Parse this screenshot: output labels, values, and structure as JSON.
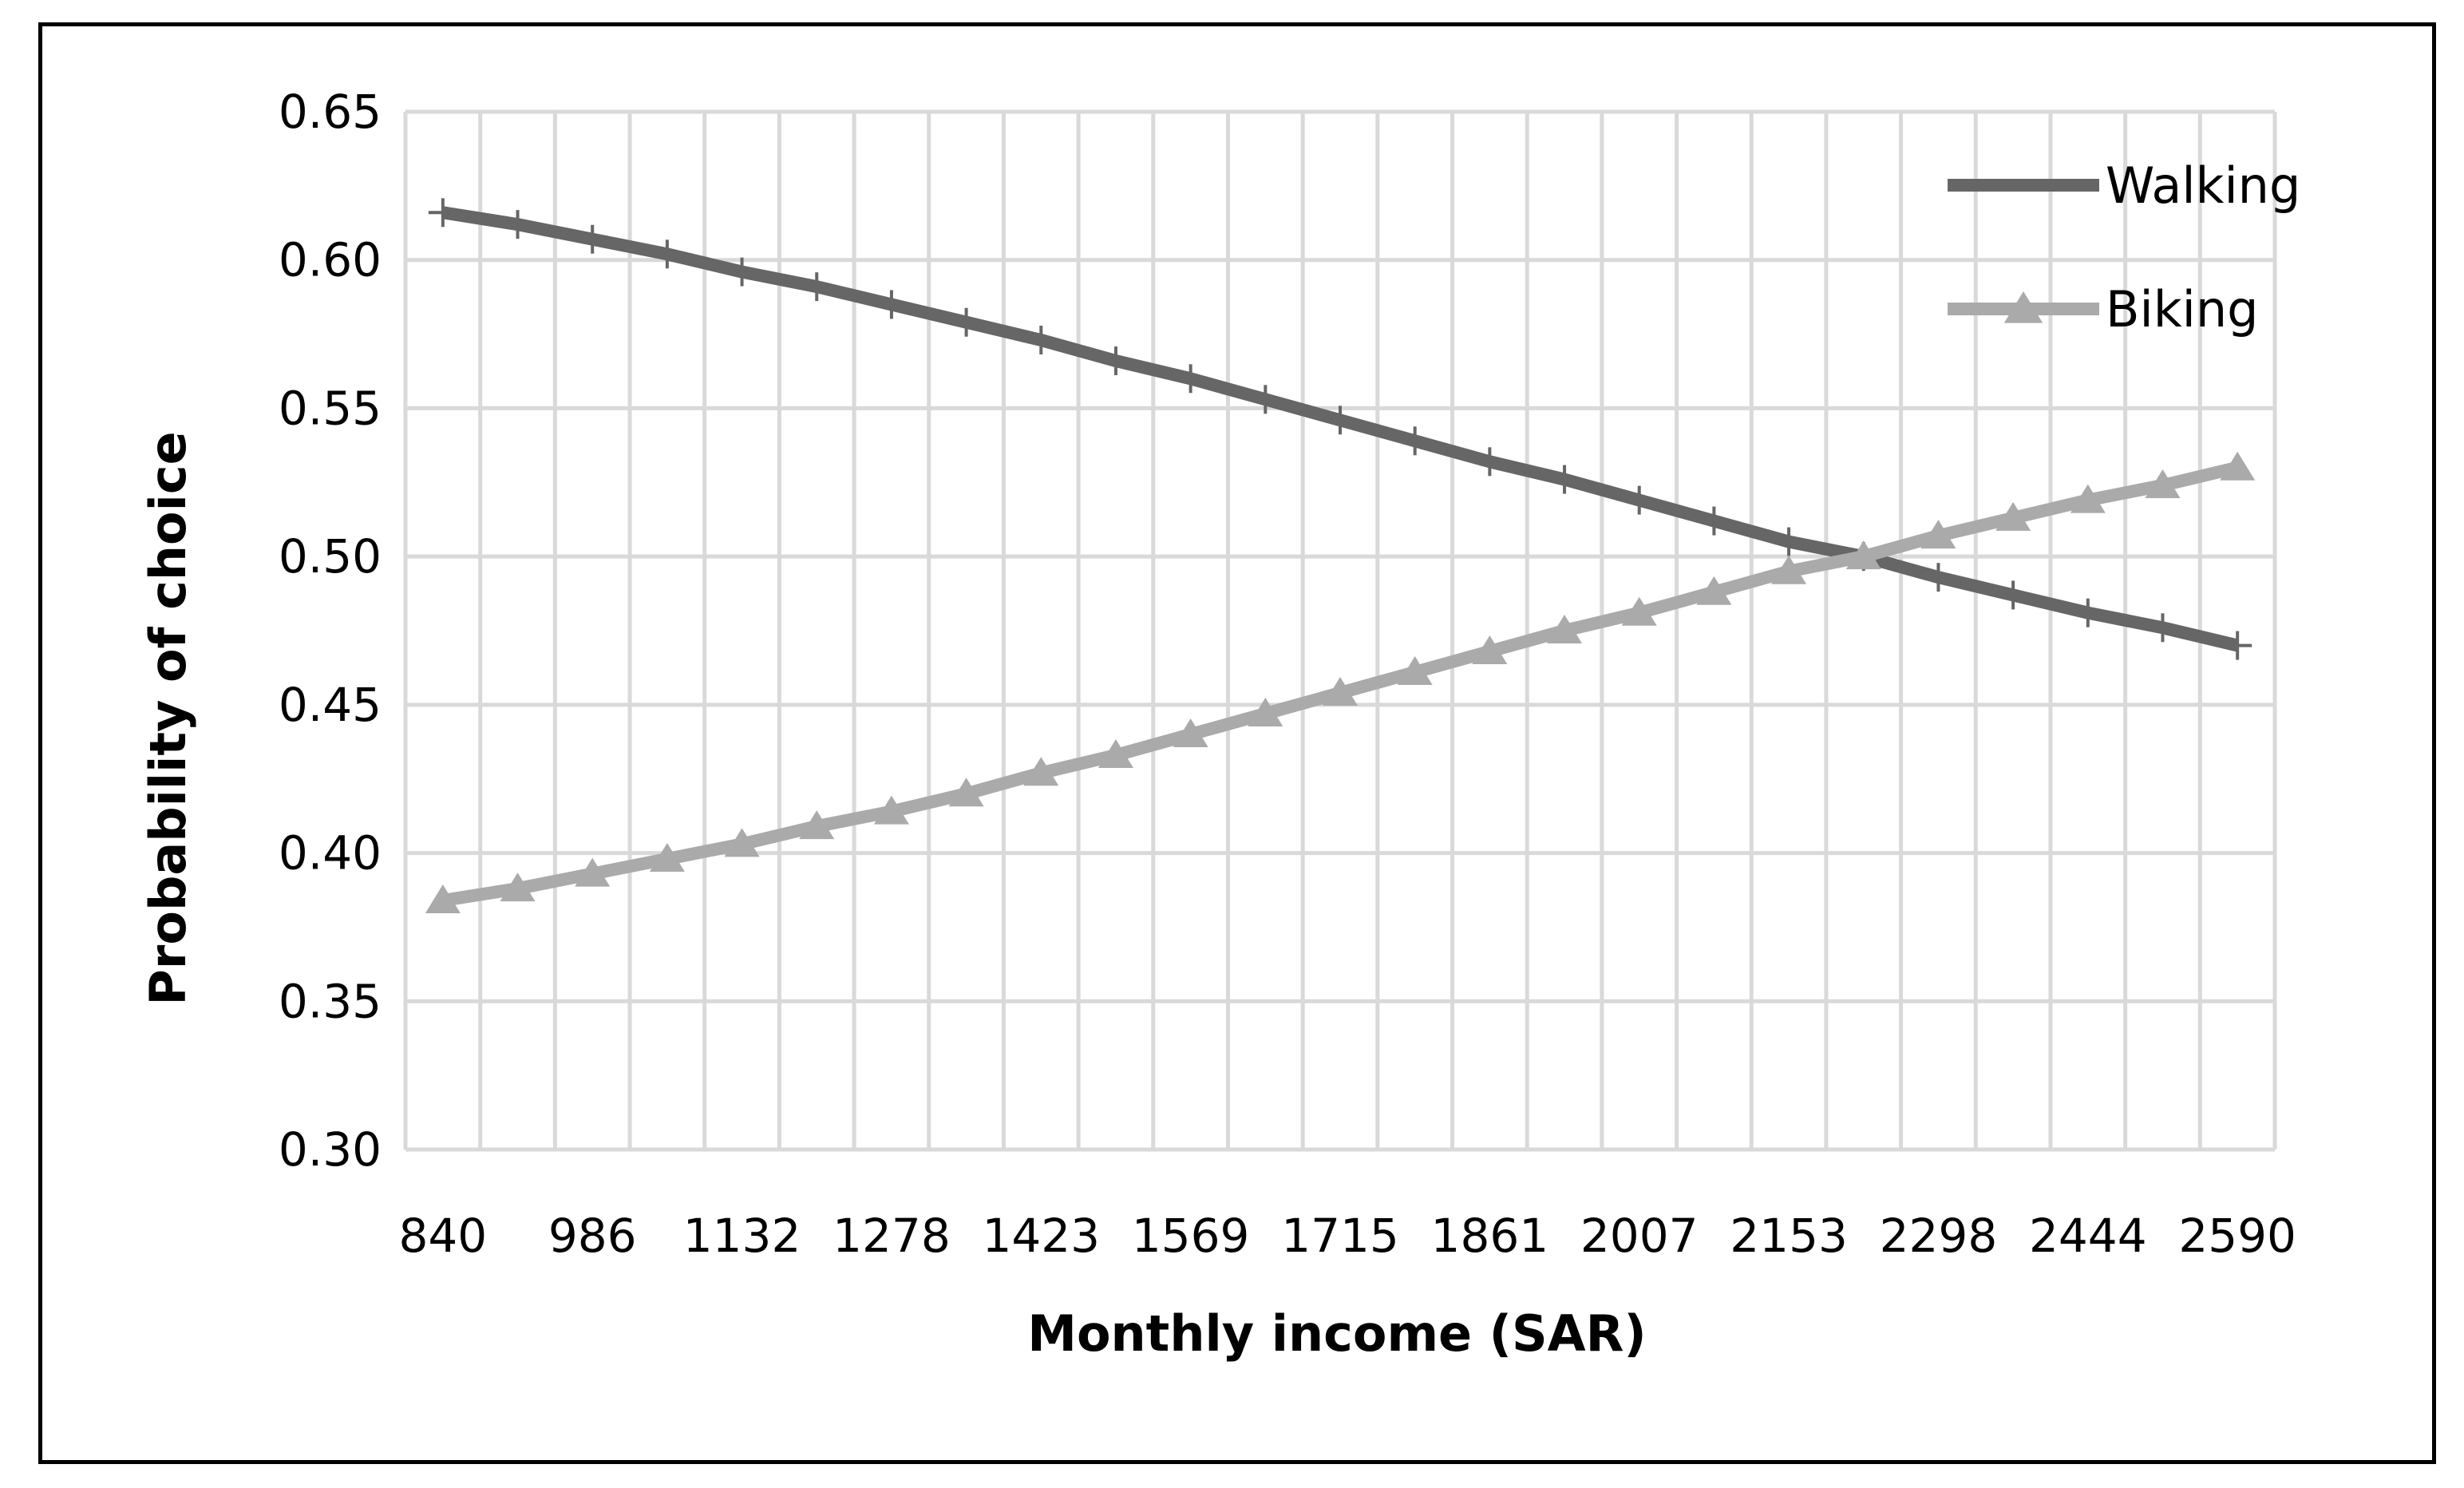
{
  "chart_data": {
    "type": "line",
    "title": "",
    "xlabel": "Monthly income (SAR)",
    "ylabel": "Probability of choice",
    "ylim": [
      0.3,
      0.65
    ],
    "y_ticks": [
      "0.30",
      "0.35",
      "0.40",
      "0.45",
      "0.50",
      "0.55",
      "0.60",
      "0.65"
    ],
    "x_tick_labels": [
      "840",
      "986",
      "1132",
      "1278",
      "1423",
      "1569",
      "1715",
      "1861",
      "2007",
      "2153",
      "2298",
      "2444",
      "2590"
    ],
    "x": [
      840,
      913,
      986,
      1059,
      1132,
      1205,
      1278,
      1350,
      1423,
      1496,
      1569,
      1642,
      1715,
      1788,
      1861,
      1934,
      2007,
      2080,
      2153,
      2225,
      2298,
      2371,
      2444,
      2517,
      2590
    ],
    "grid": true,
    "legend_position": "top-right",
    "series": [
      {
        "name": "Walking",
        "color": "#666666",
        "marker": "plus",
        "values": [
          0.616,
          0.612,
          0.607,
          0.602,
          0.596,
          0.591,
          0.585,
          0.579,
          0.573,
          0.566,
          0.56,
          0.553,
          0.546,
          0.539,
          0.532,
          0.526,
          0.519,
          0.512,
          0.505,
          0.5,
          0.493,
          0.487,
          0.481,
          0.476,
          0.47
        ]
      },
      {
        "name": "Biking",
        "color": "#aaaaaa",
        "marker": "triangle",
        "values": [
          0.384,
          0.388,
          0.393,
          0.398,
          0.403,
          0.409,
          0.414,
          0.42,
          0.427,
          0.433,
          0.44,
          0.447,
          0.454,
          0.461,
          0.468,
          0.475,
          0.481,
          0.488,
          0.495,
          0.5,
          0.507,
          0.513,
          0.519,
          0.524,
          0.53
        ]
      }
    ]
  }
}
